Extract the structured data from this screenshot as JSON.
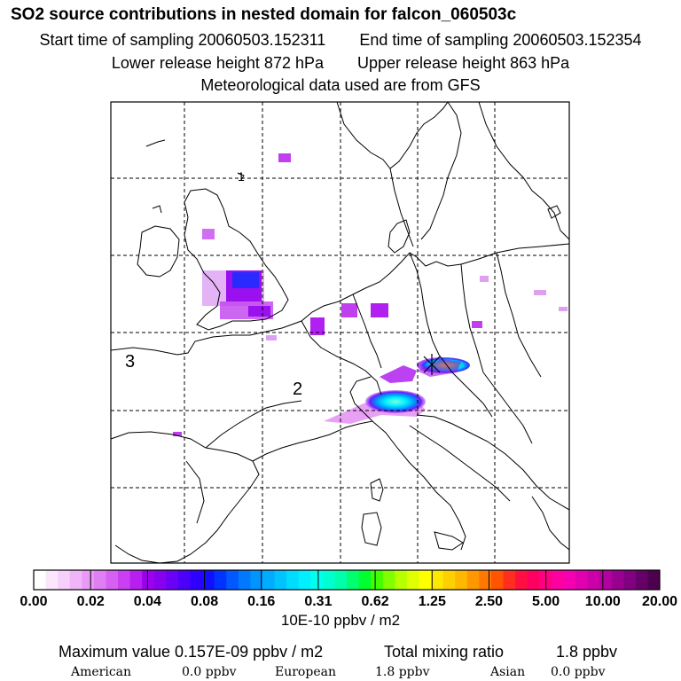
{
  "header": {
    "title": "SO2 source contributions in nested domain for falcon_060503c",
    "start_label": "Start time of sampling 20060503.152311",
    "end_label": "End time of sampling 20060503.152354",
    "lower_label": "Lower release height  872 hPa",
    "upper_label": "Upper release height  863 hPa",
    "met_label": "Meteorological data used are from GFS"
  },
  "map": {
    "region_labels": [
      "1",
      "2",
      "3"
    ],
    "grid": "dashed",
    "plume_colors": [
      "#e6a8f0",
      "#cc55ee",
      "#9900ee",
      "#2233ff",
      "#00ccff",
      "#00ffaa",
      "#ccff00"
    ]
  },
  "colorbar": {
    "tick_labels": [
      "0.00",
      "0.02",
      "0.04",
      "0.08",
      "0.16",
      "0.31",
      "0.62",
      "1.25",
      "2.50",
      "5.00",
      "10.00",
      "20.00"
    ],
    "colors": [
      "#ffffff",
      "#fbe6fd",
      "#f6d0fb",
      "#f0b5f8",
      "#e99af5",
      "#e07ef3",
      "#d560f2",
      "#c93ff1",
      "#b71ef0",
      "#9d00ee",
      "#8800f0",
      "#6a00f5",
      "#4c00fa",
      "#2d00ff",
      "#1010ff",
      "#0033ff",
      "#0058ff",
      "#0078ff",
      "#0094ff",
      "#00acff",
      "#00c4ff",
      "#00dcff",
      "#00f0ff",
      "#00ffee",
      "#00ffd0",
      "#00ffaa",
      "#00ff70",
      "#00ff30",
      "#40ff00",
      "#80ff00",
      "#b8ff00",
      "#e0ff00",
      "#ffff00",
      "#ffe800",
      "#ffd000",
      "#ffb800",
      "#ff9800",
      "#ff7800",
      "#ff5500",
      "#ff2e1e",
      "#ff1040",
      "#ff0060",
      "#ff0080",
      "#ff00a0",
      "#f400b0",
      "#e000b0",
      "#cc00a8",
      "#b300a0",
      "#990090",
      "#800080",
      "#660066",
      "#4d004d"
    ],
    "units": "10E-10 ppbv / m2"
  },
  "stats": {
    "max_label": "Maximum value  0.157E-09 ppbv / m2",
    "total_label": "Total mixing ratio",
    "total_value": "1.8 ppbv",
    "american_label": "American",
    "american_value": "0.0 ppbv",
    "european_label": "European",
    "european_value": "1.8 ppbv",
    "asian_label": "Asian",
    "asian_value": "0.0 ppbv"
  }
}
